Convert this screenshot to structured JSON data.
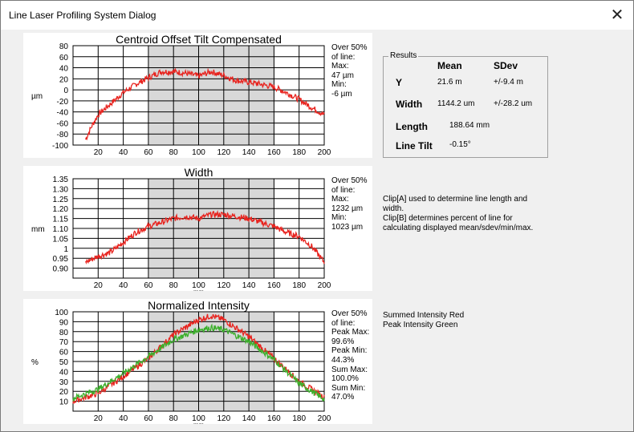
{
  "window": {
    "title": "Line Laser Profiling System Dialog",
    "close_icon": "close-icon"
  },
  "results": {
    "legend": "Results",
    "mean_header": "Mean",
    "sdev_header": "SDev",
    "rows": [
      {
        "label": "Y",
        "mean": "21.6 m",
        "sdev": "+/-9.4 m"
      },
      {
        "label": "Width",
        "mean": "1144.2 um",
        "sdev": "+/-28.2 um"
      },
      {
        "label": "Length",
        "mean": "188.64 mm",
        "sdev": ""
      },
      {
        "label": "Line Tilt",
        "mean": "-0.15°",
        "sdev": ""
      }
    ]
  },
  "notes": {
    "clip_info": [
      "Clip[A] used to determine line length and",
      "width.",
      "Clip[B] determines percent of line for",
      "calculating displayed mean/sdev/min/max."
    ],
    "intensity_legend": [
      "Summed Intensity Red",
      "Peak Intensity Green"
    ]
  },
  "colors": {
    "red": "#e8231e",
    "green": "#3cb02c",
    "shade": "#d8d8d8"
  },
  "chart_data": [
    {
      "type": "line",
      "title": "Centroid Offset Tilt Compensated",
      "ylabel": "µm",
      "xlabel": "",
      "xlim": [
        0,
        200
      ],
      "ylim": [
        -100,
        80
      ],
      "xticks": [
        20,
        40,
        60,
        80,
        100,
        120,
        140,
        160,
        180,
        200
      ],
      "yticks": [
        80,
        60,
        40,
        20,
        0,
        -20,
        -40,
        -60,
        -80,
        -100
      ],
      "ytick_labels": [
        "80",
        "60",
        "40",
        "20",
        "0",
        "-20",
        "-40",
        "-60",
        "-80",
        "-100"
      ],
      "shaded_x": [
        60,
        160
      ],
      "series": [
        {
          "color": "red",
          "x": [
            10,
            15,
            20,
            30,
            40,
            50,
            60,
            70,
            80,
            90,
            100,
            110,
            120,
            130,
            140,
            150,
            160,
            170,
            180,
            190,
            200
          ],
          "y": [
            -90,
            -65,
            -45,
            -25,
            -5,
            10,
            22,
            33,
            33,
            30,
            25,
            33,
            26,
            17,
            14,
            10,
            5,
            -5,
            -17,
            -32,
            -45
          ]
        }
      ],
      "stats": [
        "Over 50%",
        "of line:",
        "Max:",
        "47 µm",
        "Min:",
        "-6 µm"
      ]
    },
    {
      "type": "line",
      "title": "Width",
      "ylabel": "mm",
      "xlabel": "mm",
      "xlim": [
        0,
        200
      ],
      "ylim": [
        0.85,
        1.35
      ],
      "xticks": [
        20,
        40,
        60,
        80,
        100,
        120,
        140,
        160,
        180,
        200
      ],
      "yticks": [
        1.35,
        1.3,
        1.25,
        1.2,
        1.15,
        1.1,
        1.05,
        1.0,
        0.95,
        0.9
      ],
      "ytick_labels": [
        "1.35",
        "1.30",
        "1.25",
        "1.20",
        "1.15",
        "1.10",
        "1.05",
        "1",
        "0.95",
        "0.90"
      ],
      "shaded_x": [
        60,
        160
      ],
      "series": [
        {
          "color": "red",
          "x": [
            10,
            20,
            30,
            40,
            50,
            60,
            70,
            80,
            90,
            100,
            110,
            120,
            130,
            140,
            150,
            160,
            170,
            180,
            190,
            200
          ],
          "y": [
            0.93,
            0.96,
            0.98,
            1.03,
            1.08,
            1.11,
            1.13,
            1.15,
            1.16,
            1.15,
            1.17,
            1.17,
            1.16,
            1.15,
            1.13,
            1.11,
            1.08,
            1.06,
            1.01,
            0.93
          ]
        }
      ],
      "stats": [
        "Over 50%",
        "of line:",
        "Max:",
        "1232 µm",
        "Min:",
        "1023 µm"
      ]
    },
    {
      "type": "line",
      "title": "Normalized Intensity",
      "ylabel": "%",
      "xlabel": "mm",
      "xlim": [
        0,
        200
      ],
      "ylim": [
        0,
        100
      ],
      "xticks": [
        20,
        40,
        60,
        80,
        100,
        120,
        140,
        160,
        180,
        200
      ],
      "yticks": [
        100,
        90,
        80,
        70,
        60,
        50,
        40,
        30,
        20,
        10
      ],
      "ytick_labels": [
        "100",
        "90",
        "80",
        "70",
        "60",
        "50",
        "40",
        "30",
        "20",
        "10"
      ],
      "shaded_x": [
        60,
        160
      ],
      "series": [
        {
          "color": "red",
          "x": [
            0,
            20,
            40,
            60,
            80,
            100,
            110,
            120,
            140,
            160,
            180,
            200
          ],
          "y": [
            10,
            18,
            35,
            53,
            77,
            92,
            96,
            92,
            75,
            53,
            30,
            14
          ]
        },
        {
          "color": "green",
          "x": [
            0,
            20,
            40,
            60,
            80,
            100,
            110,
            120,
            140,
            160,
            180,
            200
          ],
          "y": [
            13,
            22,
            38,
            55,
            72,
            82,
            84,
            82,
            70,
            52,
            28,
            12
          ]
        }
      ],
      "stats": [
        "Over 50%",
        "of line:",
        "Peak Max:",
        "99.6%",
        "Peak Min:",
        "44.3%",
        "Sum Max:",
        "100.0%",
        "Sum Min:",
        "47.0%"
      ]
    }
  ]
}
